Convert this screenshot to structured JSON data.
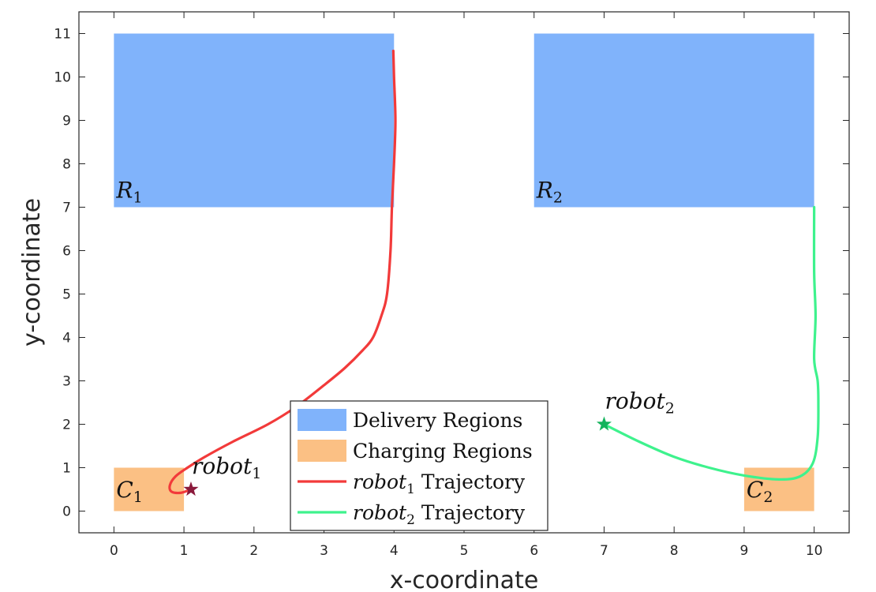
{
  "chart_data": {
    "type": "line",
    "xlabel": "x-coordinate",
    "ylabel": "y-coordinate",
    "xlim": [
      -0.5,
      10.5
    ],
    "ylim": [
      -0.5,
      11.5
    ],
    "xticks": [
      0,
      1,
      2,
      3,
      4,
      5,
      6,
      7,
      8,
      9,
      10
    ],
    "yticks": [
      0,
      1,
      2,
      3,
      4,
      5,
      6,
      7,
      8,
      9,
      10,
      11
    ],
    "grid": false,
    "legend_position": "bottom-center",
    "colors": {
      "delivery": "#80b3fb",
      "charging": "#fbc084",
      "robot1": "#f23a3a",
      "robot2": "#3ef28d",
      "robot1_marker": "#8b1a3c",
      "robot2_marker": "#13b35c"
    },
    "regions": [
      {
        "kind": "delivery",
        "name": "R",
        "subscript": "1",
        "x": [
          0,
          4
        ],
        "y": [
          7,
          11
        ]
      },
      {
        "kind": "delivery",
        "name": "R",
        "subscript": "2",
        "x": [
          6,
          10
        ],
        "y": [
          7,
          11
        ]
      },
      {
        "kind": "charging",
        "name": "C",
        "subscript": "1",
        "x": [
          0,
          1
        ],
        "y": [
          0,
          1
        ]
      },
      {
        "kind": "charging",
        "name": "C",
        "subscript": "2",
        "x": [
          9,
          10
        ],
        "y": [
          0,
          1
        ]
      }
    ],
    "series": [
      {
        "name": "robot1 Trajectory",
        "color": "#f23a3a",
        "points": [
          [
            1.1,
            0.5
          ],
          [
            0.95,
            0.42
          ],
          [
            0.82,
            0.45
          ],
          [
            0.8,
            0.6
          ],
          [
            0.88,
            0.8
          ],
          [
            1.05,
            1.0
          ],
          [
            1.3,
            1.25
          ],
          [
            1.7,
            1.6
          ],
          [
            2.2,
            2.0
          ],
          [
            2.6,
            2.4
          ],
          [
            3.0,
            2.9
          ],
          [
            3.3,
            3.3
          ],
          [
            3.55,
            3.7
          ],
          [
            3.7,
            4.0
          ],
          [
            3.82,
            4.5
          ],
          [
            3.9,
            5.0
          ],
          [
            3.95,
            6.0
          ],
          [
            3.97,
            7.0
          ],
          [
            4.0,
            8.0
          ],
          [
            4.02,
            9.0
          ],
          [
            4.0,
            10.0
          ],
          [
            3.99,
            10.6
          ]
        ]
      },
      {
        "name": "robot2 Trajectory",
        "color": "#3ef28d",
        "points": [
          [
            7.0,
            2.0
          ],
          [
            7.5,
            1.6
          ],
          [
            8.0,
            1.25
          ],
          [
            8.5,
            1.0
          ],
          [
            9.0,
            0.82
          ],
          [
            9.5,
            0.73
          ],
          [
            9.8,
            0.8
          ],
          [
            9.98,
            1.1
          ],
          [
            10.05,
            1.7
          ],
          [
            10.06,
            2.5
          ],
          [
            10.05,
            3.0
          ],
          [
            10.0,
            3.5
          ],
          [
            10.02,
            4.5
          ],
          [
            10.0,
            5.5
          ],
          [
            10.0,
            7.0
          ]
        ]
      }
    ],
    "markers": [
      {
        "name": "robot",
        "subscript": "1",
        "x": 1.1,
        "y": 0.5,
        "color": "#8b1a3c",
        "shape": "star"
      },
      {
        "name": "robot",
        "subscript": "2",
        "x": 7.0,
        "y": 2.0,
        "color": "#13b35c",
        "shape": "star"
      }
    ],
    "legend": [
      {
        "kind": "patch",
        "color": "#80b3fb",
        "label": "Delivery Regions"
      },
      {
        "kind": "patch",
        "color": "#fbc084",
        "label": "Charging Regions"
      },
      {
        "kind": "line",
        "color": "#f23a3a",
        "italic": "robot",
        "subscript": "1",
        "label": "Trajectory"
      },
      {
        "kind": "line",
        "color": "#3ef28d",
        "italic": "robot",
        "subscript": "2",
        "label": "Trajectory"
      }
    ]
  }
}
